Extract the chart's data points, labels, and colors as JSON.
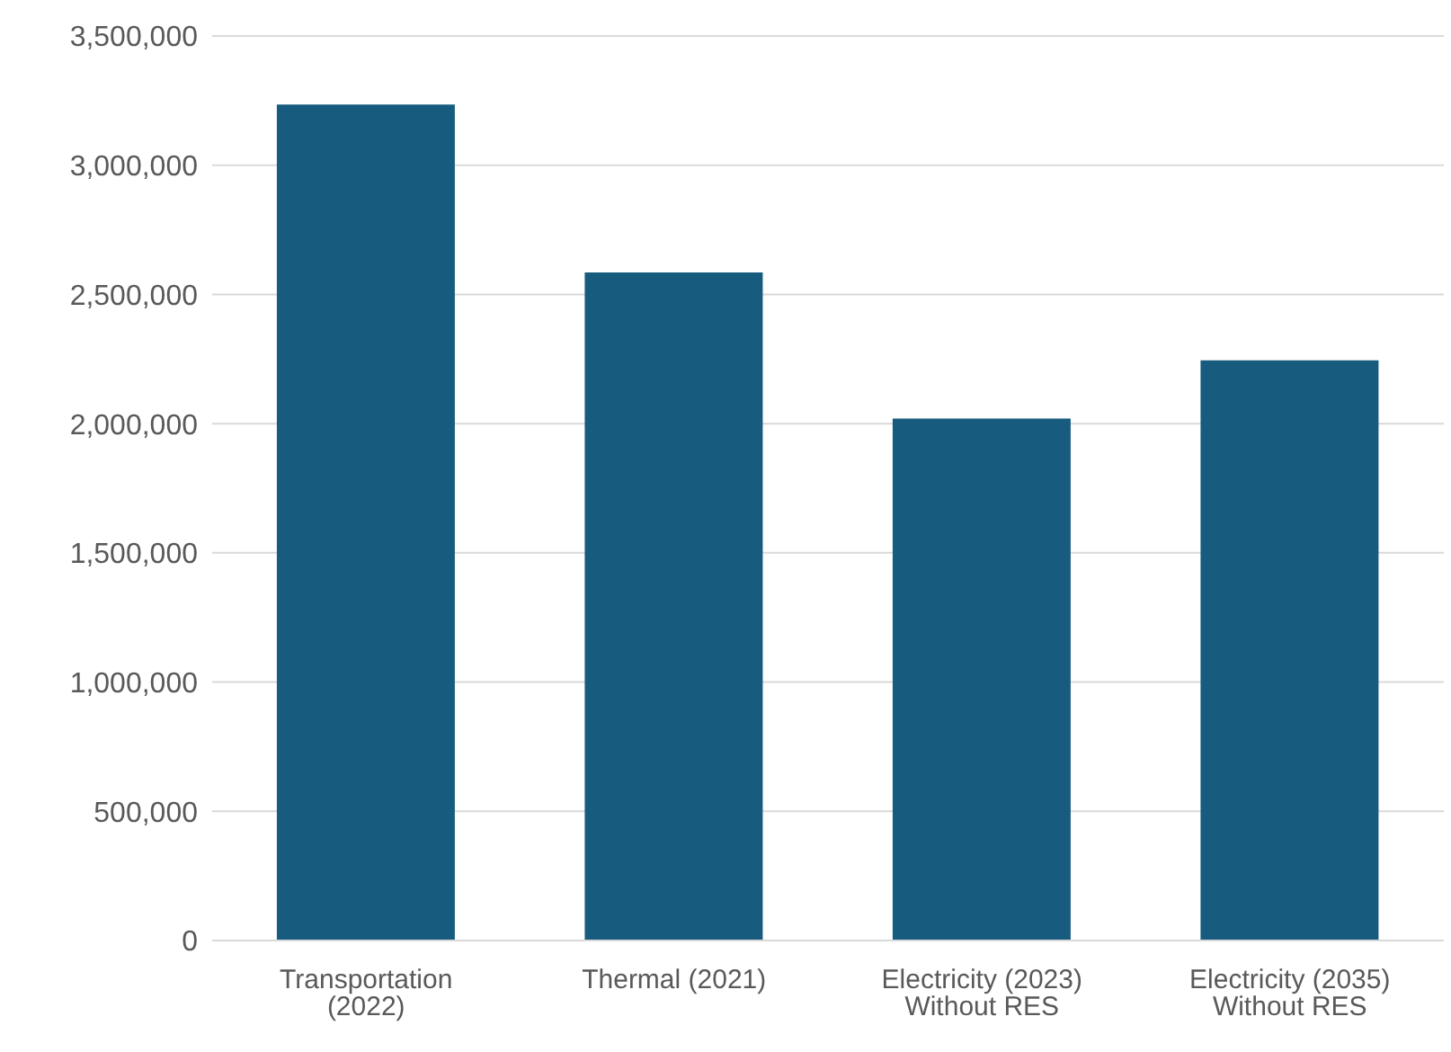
{
  "chart_data": {
    "type": "bar",
    "categories": [
      "Transportation (2022)",
      "Thermal (2021)",
      "Electricity (2023) Without RES",
      "Electricity (2035) Without RES"
    ],
    "values": [
      3235000,
      2585000,
      2020000,
      2245000
    ],
    "color": "#175c7f",
    "ylim": [
      0,
      3500000
    ],
    "yticks": [
      0,
      {
        "value": 500000,
        "label": "500,000"
      },
      {
        "value": 1000000,
        "label": "1,000,000"
      },
      {
        "value": 1500000,
        "label": "1,500,000"
      },
      {
        "value": 2000000,
        "label": "2,000,000"
      },
      {
        "value": 2500000,
        "label": "2,500,000"
      },
      {
        "value": 3000000,
        "label": "3,000,000"
      },
      {
        "value": 3500000,
        "label": "3,500,000"
      }
    ],
    "grid": "y",
    "legend": false
  }
}
